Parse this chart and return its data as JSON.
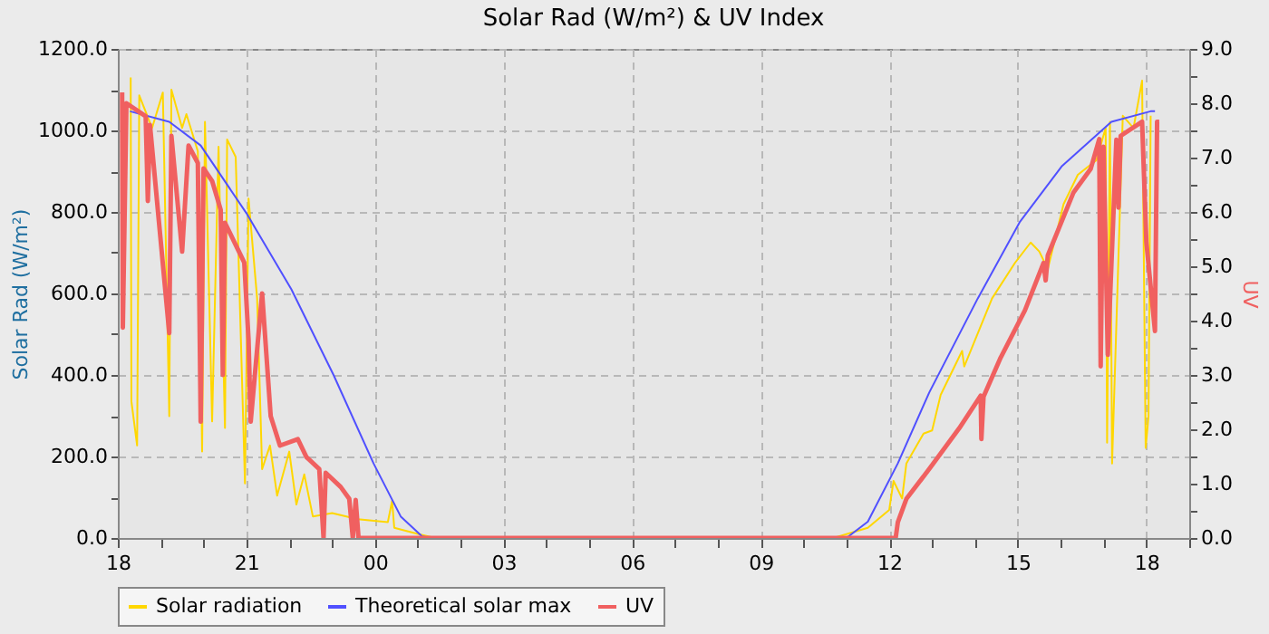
{
  "chart_data": {
    "type": "line",
    "title": "Solar Rad (W/m²) &  UV Index",
    "ylabel": "Solar Rad (W/m²)",
    "y2label": "UV",
    "xlim": [
      "2000-01-01T18:00",
      "2000-01-02T19:00"
    ],
    "xticks": [
      {
        "value": "2000-01-01T18:00",
        "label": "18"
      },
      {
        "value": "2000-01-01T19:00",
        "label": null
      },
      {
        "value": "2000-01-01T20:00",
        "label": null
      },
      {
        "value": "2000-01-01T21:00",
        "label": "21"
      },
      {
        "value": "2000-01-01T22:00",
        "label": null
      },
      {
        "value": "2000-01-01T23:00",
        "label": null
      },
      {
        "value": "2000-01-02T00:00",
        "label": "00"
      },
      {
        "value": "2000-01-02T01:00",
        "label": null
      },
      {
        "value": "2000-01-02T02:00",
        "label": null
      },
      {
        "value": "2000-01-02T03:00",
        "label": "03"
      },
      {
        "value": "2000-01-02T04:00",
        "label": null
      },
      {
        "value": "2000-01-02T05:00",
        "label": null
      },
      {
        "value": "2000-01-02T06:00",
        "label": "06"
      },
      {
        "value": "2000-01-02T07:00",
        "label": null
      },
      {
        "value": "2000-01-02T08:00",
        "label": null
      },
      {
        "value": "2000-01-02T09:00",
        "label": "09"
      },
      {
        "value": "2000-01-02T10:00",
        "label": null
      },
      {
        "value": "2000-01-02T11:00",
        "label": null
      },
      {
        "value": "2000-01-02T12:00",
        "label": "12"
      },
      {
        "value": "2000-01-02T13:00",
        "label": null
      },
      {
        "value": "2000-01-02T14:00",
        "label": null
      },
      {
        "value": "2000-01-02T15:00",
        "label": "15"
      },
      {
        "value": "2000-01-02T16:00",
        "label": null
      },
      {
        "value": "2000-01-02T17:00",
        "label": null
      },
      {
        "value": "2000-01-02T18:00",
        "label": "18"
      },
      {
        "value": "2000-01-02T19:00",
        "label": null
      }
    ],
    "ylim": [
      0,
      1200
    ],
    "yticks": [
      {
        "value": 0,
        "label": "0.0"
      },
      {
        "value": 100,
        "label": null
      },
      {
        "value": 200,
        "label": "200.0"
      },
      {
        "value": 300,
        "label": null
      },
      {
        "value": 400,
        "label": "400.0"
      },
      {
        "value": 500,
        "label": null
      },
      {
        "value": 600,
        "label": "600.0"
      },
      {
        "value": 700,
        "label": null
      },
      {
        "value": 800,
        "label": "800.0"
      },
      {
        "value": 900,
        "label": null
      },
      {
        "value": 1000,
        "label": "1000.0"
      },
      {
        "value": 1100,
        "label": null
      },
      {
        "value": 1200,
        "label": "1200.0"
      }
    ],
    "y2lim": [
      0,
      9
    ],
    "y2ticks": [
      {
        "value": 0,
        "label": "0.0"
      },
      {
        "value": 0.5,
        "label": null
      },
      {
        "value": 1,
        "label": "1.0"
      },
      {
        "value": 1.5,
        "label": null
      },
      {
        "value": 2,
        "label": "2.0"
      },
      {
        "value": 2.5,
        "label": null
      },
      {
        "value": 3,
        "label": "3.0"
      },
      {
        "value": 3.5,
        "label": null
      },
      {
        "value": 4,
        "label": "4.0"
      },
      {
        "value": 4.5,
        "label": null
      },
      {
        "value": 5,
        "label": "5.0"
      },
      {
        "value": 5.5,
        "label": null
      },
      {
        "value": 6,
        "label": "6.0"
      },
      {
        "value": 6.5,
        "label": null
      },
      {
        "value": 7,
        "label": "7.0"
      },
      {
        "value": 7.5,
        "label": null
      },
      {
        "value": 8,
        "label": "8.0"
      },
      {
        "value": 8.5,
        "label": null
      },
      {
        "value": 9,
        "label": "9.0"
      }
    ],
    "grid": true,
    "legend": "bottom",
    "marker": "none",
    "line_style": "solid",
    "series": [
      {
        "name": "Solar radiation",
        "color": "#ffd700",
        "x": [
          "2000-01-01T18:18",
          "2000-01-01T18:19",
          "2000-01-01T18:27",
          "2000-01-01T18:30",
          "2000-01-01T18:48",
          "2000-01-01T19:03",
          "2000-01-01T19:12",
          "2000-01-01T19:15",
          "2000-01-01T19:30",
          "2000-01-01T19:36",
          "2000-01-01T19:52",
          "2000-01-01T19:58",
          "2000-01-01T20:02",
          "2000-01-01T20:12",
          "2000-01-01T20:21",
          "2000-01-01T20:30",
          "2000-01-01T20:33",
          "2000-01-01T20:45",
          "2000-01-01T20:58",
          "2000-01-01T21:03",
          "2000-01-01T21:15",
          "2000-01-01T21:22",
          "2000-01-01T21:33",
          "2000-01-01T21:43",
          "2000-01-01T22:00",
          "2000-01-01T22:10",
          "2000-01-01T22:21",
          "2000-01-01T22:33",
          "2000-01-01T23:00",
          "2000-01-01T23:36",
          "2000-01-02T00:18",
          "2000-01-02T00:24",
          "2000-01-02T00:27",
          "2000-01-02T01:00",
          "2000-01-02T01:24",
          "2000-01-02T10:42",
          "2000-01-02T11:30",
          "2000-01-02T12:00",
          "2000-01-02T12:06",
          "2000-01-02T12:18",
          "2000-01-02T12:24",
          "2000-01-02T12:48",
          "2000-01-02T13:00",
          "2000-01-02T13:12",
          "2000-01-02T13:42",
          "2000-01-02T13:45",
          "2000-01-02T14:24",
          "2000-01-02T14:56",
          "2000-01-02T15:18",
          "2000-01-02T15:30",
          "2000-01-02T15:42",
          "2000-01-02T16:04",
          "2000-01-02T16:24",
          "2000-01-02T16:50",
          "2000-01-02T17:03",
          "2000-01-02T17:05",
          "2000-01-02T17:09",
          "2000-01-02T17:12",
          "2000-01-02T17:27",
          "2000-01-02T17:42",
          "2000-01-02T17:54",
          "2000-01-02T17:59",
          "2000-01-02T18:03",
          "2000-01-02T18:06"
        ],
        "values": [
          1130,
          335,
          227,
          1086,
          1006,
          1093,
          299,
          1100,
          1006,
          1040,
          949,
          212,
          1021,
          286,
          960,
          270,
          978,
          935,
          134,
          833,
          588,
          169,
          227,
          104,
          212,
          82,
          156,
          53,
          61,
          46,
          39,
          91,
          25,
          10,
          0,
          0,
          25,
          69,
          140,
          97,
          183,
          256,
          264,
          351,
          459,
          421,
          588,
          675,
          725,
          703,
          660,
          819,
          891,
          927,
          1006,
          234,
          1021,
          183,
          1036,
          1006,
          1122,
          221,
          299,
          1036
        ]
      },
      {
        "name": "Theoretical solar max",
        "color": "#5050ff",
        "x": [
          "2000-01-01T18:17",
          "2000-01-01T19:12",
          "2000-01-01T19:56",
          "2000-01-01T21:00",
          "2000-01-01T22:03",
          "2000-01-01T23:02",
          "2000-01-01T23:58",
          "2000-01-02T00:36",
          "2000-01-02T01:06",
          "2000-01-02T01:18",
          "2000-01-02T11:00",
          "2000-01-02T11:30",
          "2000-01-02T12:12",
          "2000-01-02T12:56",
          "2000-01-02T14:04",
          "2000-01-02T15:03",
          "2000-01-02T16:02",
          "2000-01-02T17:11",
          "2000-01-02T18:06",
          "2000-01-02T18:12"
        ],
        "values": [
          1047,
          1021,
          963,
          797,
          610,
          400,
          183,
          53,
          4,
          0,
          0,
          40,
          183,
          357,
          588,
          776,
          913,
          1021,
          1047,
          1047
        ]
      },
      {
        "name": "UV",
        "color": "#f06060",
        "axis": "y2",
        "x": [
          "2000-01-01T18:06",
          "2000-01-01T18:07",
          "2000-01-01T18:12",
          "2000-01-01T18:39",
          "2000-01-01T18:42",
          "2000-01-01T18:45",
          "2000-01-01T19:12",
          "2000-01-01T19:15",
          "2000-01-01T19:30",
          "2000-01-01T19:39",
          "2000-01-01T19:52",
          "2000-01-01T19:56",
          "2000-01-01T20:00",
          "2000-01-01T20:12",
          "2000-01-01T20:24",
          "2000-01-01T20:27",
          "2000-01-01T20:30",
          "2000-01-01T20:57",
          "2000-01-01T21:03",
          "2000-01-01T21:06",
          "2000-01-01T21:22",
          "2000-01-01T21:34",
          "2000-01-01T21:47",
          "2000-01-01T22:12",
          "2000-01-01T22:24",
          "2000-01-01T22:42",
          "2000-01-01T22:48",
          "2000-01-01T22:51",
          "2000-01-01T23:12",
          "2000-01-01T23:24",
          "2000-01-01T23:29",
          "2000-01-01T23:33",
          "2000-01-01T23:37",
          "2000-01-02T12:09",
          "2000-01-02T12:12",
          "2000-01-02T12:24",
          "2000-01-02T12:56",
          "2000-01-02T13:38",
          "2000-01-02T14:08",
          "2000-01-02T14:09",
          "2000-01-02T14:12",
          "2000-01-02T14:36",
          "2000-01-02T15:10",
          "2000-01-02T15:36",
          "2000-01-02T15:39",
          "2000-01-02T15:42",
          "2000-01-02T16:18",
          "2000-01-02T16:42",
          "2000-01-02T16:54",
          "2000-01-02T16:56",
          "2000-01-02T17:00",
          "2000-01-02T17:06",
          "2000-01-02T17:18",
          "2000-01-02T17:21",
          "2000-01-02T17:24",
          "2000-01-02T17:54",
          "2000-01-02T18:00",
          "2000-01-02T18:12",
          "2000-01-02T18:15",
          "2000-01-02T18:18"
        ],
        "values": [
          8.2,
          3.87,
          8.0,
          7.76,
          6.2,
          7.6,
          3.77,
          7.4,
          5.27,
          7.22,
          6.9,
          2.14,
          6.8,
          6.57,
          6.04,
          3.0,
          5.8,
          5.07,
          3.65,
          2.14,
          4.5,
          2.24,
          1.7,
          1.82,
          1.49,
          1.27,
          0,
          1.2,
          0.94,
          0.72,
          0,
          0.7,
          0,
          0,
          0.29,
          0.72,
          1.27,
          2.02,
          2.62,
          1.82,
          2.6,
          3.32,
          4.19,
          5.06,
          4.74,
          5.2,
          6.36,
          6.79,
          7.34,
          3.16,
          7.2,
          3.37,
          7.33,
          6.08,
          7.4,
          7.66,
          5.44,
          3.81,
          7.66,
          7.66
        ]
      }
    ]
  }
}
